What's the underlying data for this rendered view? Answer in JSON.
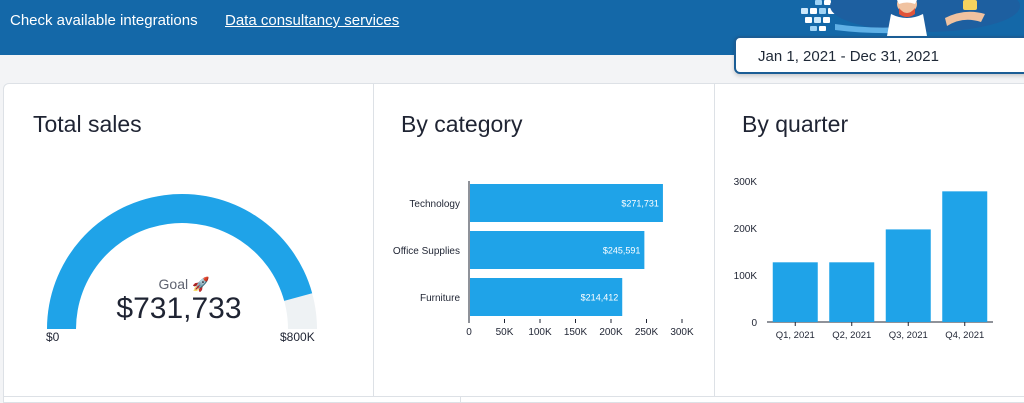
{
  "header": {
    "link_integrations": "Check available integrations",
    "link_consultancy": "Data consultancy services",
    "date_range": "Jan 1, 2021 - Dec 31, 2021"
  },
  "colors": {
    "bar": "#1fa3e8",
    "topbar": "#1468a8",
    "gauge_track": "#eef2f4"
  },
  "total_sales": {
    "title": "Total sales",
    "goal_label": "Goal 🚀",
    "value_text": "$731,733",
    "min_label": "$0",
    "max_label": "$800K"
  },
  "by_category": {
    "title": "By category"
  },
  "by_quarter": {
    "title": "By quarter"
  },
  "chart_data": [
    {
      "type": "gauge",
      "title": "Total sales",
      "value": 731733,
      "min": 0,
      "max": 800000,
      "min_label": "$0",
      "max_label": "$800K",
      "goal_label": "Goal 🚀",
      "value_label": "$731,733"
    },
    {
      "type": "bar",
      "orientation": "horizontal",
      "title": "By category",
      "categories": [
        "Technology",
        "Office Supplies",
        "Furniture"
      ],
      "values": [
        271731,
        245591,
        214412
      ],
      "value_labels": [
        "$271,731",
        "$245,591",
        "$214,412"
      ],
      "xlim": [
        0,
        300000
      ],
      "xticks": [
        0,
        50000,
        100000,
        150000,
        200000,
        250000,
        300000
      ],
      "xtick_labels": [
        "0",
        "50K",
        "100K",
        "150K",
        "200K",
        "250K",
        "300K"
      ]
    },
    {
      "type": "bar",
      "orientation": "vertical",
      "title": "By quarter",
      "categories": [
        "Q1, 2021",
        "Q2, 2021",
        "Q3, 2021",
        "Q4, 2021"
      ],
      "values": [
        127000,
        127000,
        197000,
        278000
      ],
      "ylim": [
        0,
        300000
      ],
      "yticks": [
        0,
        100000,
        200000,
        300000
      ],
      "ytick_labels": [
        "0",
        "100K",
        "200K",
        "300K"
      ]
    }
  ]
}
